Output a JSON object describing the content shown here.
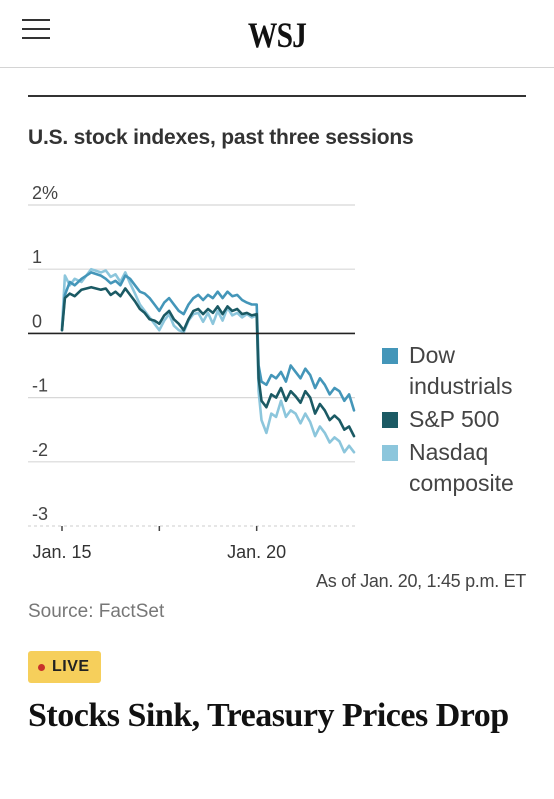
{
  "header": {
    "logo": "WSJ",
    "menu_icon": "hamburger-menu-icon"
  },
  "chart_data": {
    "type": "line",
    "title": "U.S. stock indexes, past three sessions",
    "ytick_labels": [
      "2%",
      "1",
      "0",
      "-1",
      "-2",
      "-3"
    ],
    "yticks": [
      2,
      1,
      0,
      -1,
      -2,
      -3
    ],
    "ylim": [
      -3,
      2
    ],
    "xlim": [
      0,
      3
    ],
    "xtick_labels": [
      "Jan. 15",
      "Jan. 20"
    ],
    "xtick_positions": [
      0,
      2
    ],
    "annotation": "As of Jan. 20, 1:45 p.m. ET",
    "source": "Source: FactSet",
    "grid": true,
    "legend_position": "right",
    "series": [
      {
        "name": "Dow industrials",
        "color": "#4496b9",
        "x": [
          0,
          0.03,
          0.08,
          0.13,
          0.2,
          0.3,
          0.4,
          0.45,
          0.5,
          0.55,
          0.6,
          0.65,
          0.7,
          0.75,
          0.8,
          0.85,
          0.9,
          0.95,
          1.0,
          1.05,
          1.1,
          1.15,
          1.2,
          1.25,
          1.3,
          1.35,
          1.4,
          1.45,
          1.5,
          1.55,
          1.6,
          1.65,
          1.7,
          1.75,
          1.8,
          1.85,
          1.9,
          1.95,
          2.0,
          2.02,
          2.05,
          2.1,
          2.15,
          2.2,
          2.25,
          2.3,
          2.35,
          2.4,
          2.45,
          2.5,
          2.55,
          2.6,
          2.65,
          2.7,
          2.75,
          2.8,
          2.85,
          2.9,
          2.95,
          3.0
        ],
        "y": [
          0.05,
          0.6,
          0.8,
          0.75,
          0.85,
          0.95,
          0.9,
          0.85,
          0.78,
          0.82,
          0.75,
          0.9,
          0.85,
          0.75,
          0.65,
          0.62,
          0.55,
          0.45,
          0.35,
          0.48,
          0.55,
          0.45,
          0.35,
          0.3,
          0.45,
          0.55,
          0.6,
          0.52,
          0.6,
          0.55,
          0.65,
          0.55,
          0.65,
          0.58,
          0.6,
          0.52,
          0.48,
          0.45,
          0.45,
          -0.5,
          -0.75,
          -0.8,
          -0.65,
          -0.7,
          -0.6,
          -0.75,
          -0.5,
          -0.6,
          -0.7,
          -0.55,
          -0.65,
          -0.85,
          -0.7,
          -0.8,
          -0.95,
          -0.85,
          -0.9,
          -1.05,
          -0.95,
          -1.2
        ]
      },
      {
        "name": "S&P 500",
        "color": "#1b5a64",
        "x": [
          0,
          0.03,
          0.08,
          0.13,
          0.2,
          0.3,
          0.4,
          0.45,
          0.5,
          0.55,
          0.6,
          0.65,
          0.7,
          0.75,
          0.8,
          0.85,
          0.9,
          0.95,
          1.0,
          1.05,
          1.1,
          1.15,
          1.2,
          1.25,
          1.3,
          1.35,
          1.4,
          1.45,
          1.5,
          1.55,
          1.6,
          1.65,
          1.7,
          1.75,
          1.8,
          1.85,
          1.9,
          1.95,
          2.0,
          2.02,
          2.05,
          2.1,
          2.15,
          2.2,
          2.25,
          2.3,
          2.35,
          2.4,
          2.45,
          2.5,
          2.55,
          2.6,
          2.65,
          2.7,
          2.75,
          2.8,
          2.85,
          2.9,
          2.95,
          3.0
        ],
        "y": [
          0.05,
          0.55,
          0.62,
          0.58,
          0.68,
          0.72,
          0.68,
          0.7,
          0.6,
          0.65,
          0.58,
          0.7,
          0.6,
          0.5,
          0.38,
          0.32,
          0.22,
          0.2,
          0.15,
          0.28,
          0.35,
          0.22,
          0.15,
          0.05,
          0.22,
          0.35,
          0.38,
          0.3,
          0.38,
          0.32,
          0.42,
          0.3,
          0.42,
          0.35,
          0.38,
          0.3,
          0.32,
          0.28,
          0.3,
          -0.7,
          -1.05,
          -1.15,
          -0.95,
          -1.0,
          -0.85,
          -1.05,
          -0.9,
          -0.98,
          -1.08,
          -0.9,
          -1.0,
          -1.25,
          -1.1,
          -1.2,
          -1.35,
          -1.28,
          -1.35,
          -1.5,
          -1.45,
          -1.6
        ]
      },
      {
        "name": "Nasdaq composite",
        "color": "#8cc6dc",
        "x": [
          0,
          0.03,
          0.08,
          0.13,
          0.2,
          0.3,
          0.4,
          0.45,
          0.5,
          0.55,
          0.6,
          0.65,
          0.7,
          0.75,
          0.8,
          0.85,
          0.9,
          0.95,
          1.0,
          1.05,
          1.1,
          1.15,
          1.2,
          1.25,
          1.3,
          1.35,
          1.4,
          1.45,
          1.5,
          1.55,
          1.6,
          1.65,
          1.7,
          1.75,
          1.8,
          1.85,
          1.9,
          1.95,
          2.0,
          2.02,
          2.05,
          2.1,
          2.15,
          2.2,
          2.25,
          2.3,
          2.35,
          2.4,
          2.45,
          2.5,
          2.55,
          2.6,
          2.65,
          2.7,
          2.75,
          2.8,
          2.85,
          2.9,
          2.95,
          3.0
        ],
        "y": [
          0.1,
          0.9,
          0.75,
          0.85,
          0.8,
          1.0,
          0.95,
          0.98,
          0.88,
          0.92,
          0.8,
          0.95,
          0.78,
          0.62,
          0.45,
          0.35,
          0.25,
          0.15,
          0.05,
          0.2,
          0.3,
          0.12,
          0.05,
          0.02,
          0.2,
          0.3,
          0.32,
          0.18,
          0.32,
          0.15,
          0.35,
          0.2,
          0.4,
          0.28,
          0.32,
          0.25,
          0.3,
          0.25,
          0.28,
          -0.9,
          -1.35,
          -1.55,
          -1.25,
          -1.3,
          -1.05,
          -1.3,
          -1.2,
          -1.25,
          -1.4,
          -1.25,
          -1.38,
          -1.6,
          -1.45,
          -1.55,
          -1.7,
          -1.62,
          -1.68,
          -1.85,
          -1.75,
          -1.85
        ]
      }
    ]
  },
  "live_badge": {
    "label": "LIVE",
    "color": "#f6cf5b"
  },
  "headline": "Stocks Sink, Treasury Prices Drop"
}
